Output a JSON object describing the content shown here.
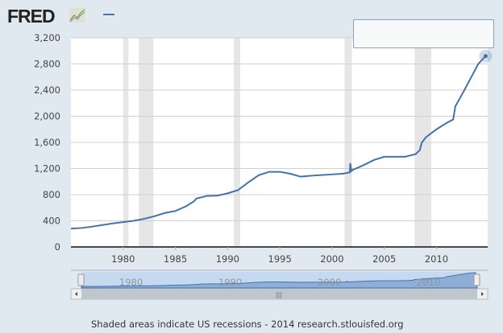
{
  "header": {
    "logo_text": "FRED",
    "logo_icon": "chart-line-icon",
    "legend_series_color": "#4572a7"
  },
  "footer": {
    "note": "Shaded areas indicate US recessions - 2014 research.stlouisfed.org"
  },
  "chart_data": {
    "type": "line",
    "title": "",
    "xlabel": "",
    "ylabel": "",
    "xlim": [
      1975,
      2014.9
    ],
    "ylim": [
      0,
      3200
    ],
    "yticks": [
      0,
      400,
      800,
      1200,
      1600,
      2000,
      2400,
      2800,
      3200
    ],
    "ytick_labels": [
      "0",
      "400",
      "800",
      "1,200",
      "1,600",
      "2,000",
      "2,400",
      "2,800",
      "3,200"
    ],
    "xticks": [
      1980,
      1985,
      1990,
      1995,
      2000,
      2005,
      2010
    ],
    "grid": true,
    "line_color": "#4572a7",
    "recessions": [
      [
        1980.0,
        1980.5
      ],
      [
        1981.5,
        1982.9
      ],
      [
        1990.6,
        1991.2
      ],
      [
        2001.2,
        2001.9
      ],
      [
        2007.9,
        2009.5
      ]
    ],
    "series": [
      {
        "x": [
          1975,
          1976,
          1977,
          1978,
          1979,
          1980,
          1981,
          1982,
          1983,
          1984,
          1985,
          1986,
          1986.8,
          1987,
          1988,
          1989,
          1990,
          1991,
          1992,
          1993,
          1994,
          1995,
          1996,
          1997,
          1998,
          1999,
          2000,
          2001,
          2001.7,
          2001.75,
          2001.85,
          2002,
          2003,
          2004,
          2005,
          2006,
          2007,
          2008,
          2008.4,
          2008.6,
          2009,
          2010,
          2011,
          2011.6,
          2011.8,
          2012.5,
          2013,
          2013.5,
          2014,
          2014.7
        ],
        "y": [
          280,
          290,
          310,
          335,
          360,
          380,
          400,
          430,
          470,
          520,
          550,
          620,
          700,
          740,
          780,
          785,
          820,
          870,
          990,
          1100,
          1150,
          1150,
          1120,
          1075,
          1090,
          1100,
          1110,
          1120,
          1140,
          1280,
          1160,
          1180,
          1250,
          1330,
          1380,
          1380,
          1380,
          1420,
          1480,
          1600,
          1680,
          1800,
          1900,
          1950,
          2150,
          2350,
          2500,
          2650,
          2800,
          2920
        ]
      }
    ],
    "navigator": {
      "xticks": [
        1980,
        1990,
        2000,
        2010
      ]
    }
  }
}
